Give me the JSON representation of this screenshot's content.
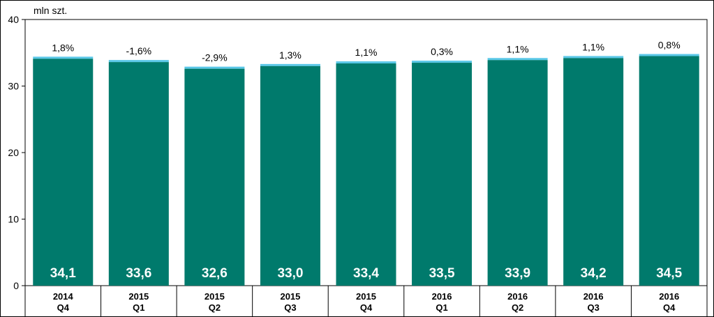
{
  "chart_data": {
    "type": "bar",
    "unit_label": "mln szt.",
    "ylim": [
      0,
      40
    ],
    "yticks": [
      0,
      10,
      20,
      30,
      40
    ],
    "categories": [
      [
        "2014",
        "Q4"
      ],
      [
        "2015",
        "Q1"
      ],
      [
        "2015",
        "Q2"
      ],
      [
        "2015",
        "Q3"
      ],
      [
        "2015",
        "Q4"
      ],
      [
        "2016",
        "Q1"
      ],
      [
        "2016",
        "Q2"
      ],
      [
        "2016",
        "Q3"
      ],
      [
        "2016",
        "Q4"
      ]
    ],
    "values": [
      34.1,
      33.6,
      32.6,
      33.0,
      33.4,
      33.5,
      33.9,
      34.2,
      34.5
    ],
    "value_labels": [
      "34,1",
      "33,6",
      "32,6",
      "33,0",
      "33,4",
      "33,5",
      "33,9",
      "34,2",
      "34,5"
    ],
    "change_labels": [
      "1,8%",
      "-1,6%",
      "-2,9%",
      "1,3%",
      "1,1%",
      "0,3%",
      "1,1%",
      "1,1%",
      "0,8%"
    ],
    "colors": {
      "bar": "#007A6C",
      "accent": "#5BC8E8"
    },
    "grid": false,
    "legend": "none"
  }
}
